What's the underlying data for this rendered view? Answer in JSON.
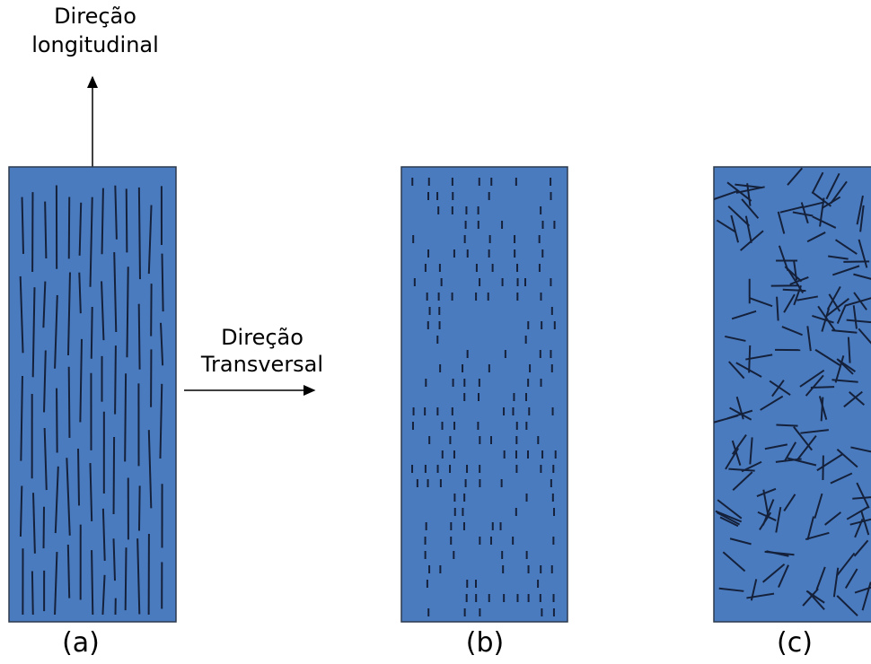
{
  "labels": {
    "longitudinal": [
      "Direção",
      "longitudinal"
    ],
    "transversal": [
      "Direção",
      "Transversal"
    ]
  },
  "panels": [
    "(a)",
    "(b)",
    "(c)"
  ]
}
